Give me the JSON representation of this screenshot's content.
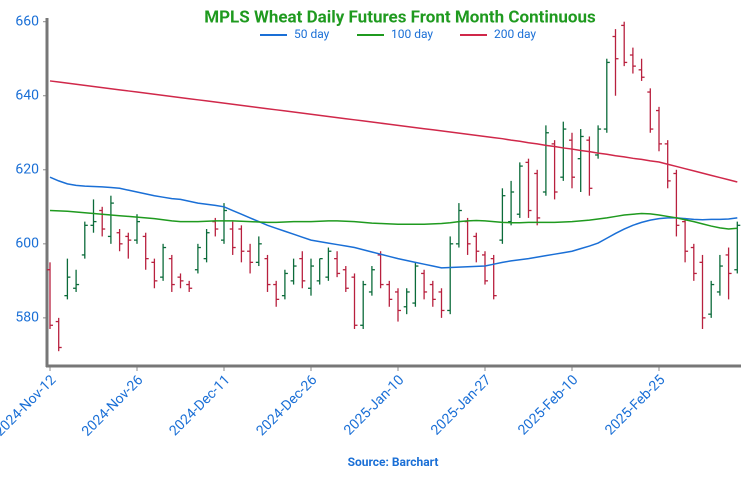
{
  "chart_data": {
    "type": "ohlc",
    "title": "MPLS Wheat Daily Futures Front Month Continuous",
    "source": "Source: Barchart",
    "categories": [
      "2024-Nov-12",
      null,
      null,
      null,
      null,
      null,
      null,
      null,
      null,
      null,
      "2024-Nov-26",
      null,
      null,
      null,
      null,
      null,
      null,
      null,
      null,
      null,
      "2024-Dec-11",
      null,
      null,
      null,
      null,
      null,
      null,
      null,
      null,
      null,
      "2024-Dec-26",
      null,
      null,
      null,
      null,
      null,
      null,
      null,
      null,
      null,
      "2025-Jan-10",
      null,
      null,
      null,
      null,
      null,
      null,
      null,
      null,
      null,
      "2025-Jan-27",
      null,
      null,
      null,
      null,
      null,
      null,
      null,
      null,
      null,
      "2025-Feb-10",
      null,
      null,
      null,
      null,
      null,
      null,
      null,
      null,
      null,
      "2025-Feb-25",
      null,
      null,
      null,
      null,
      null,
      null,
      null,
      null,
      null
    ],
    "ohlc": {
      "up_color": "#0b6b3a",
      "down_color": "#b8203e",
      "open": [
        593,
        579,
        586,
        588,
        597,
        605,
        609,
        602,
        603,
        602,
        601,
        602,
        595,
        591,
        596,
        591,
        589,
        593,
        596,
        606,
        601,
        604,
        604,
        598,
        595,
        596,
        589,
        586,
        590,
        596,
        588,
        590,
        591,
        596,
        593,
        591,
        578,
        587,
        597,
        589,
        587,
        583,
        584,
        592,
        589,
        587,
        582,
        600,
        606,
        602,
        597,
        596,
        601,
        606,
        608,
        622,
        619,
        614,
        627,
        618,
        628,
        623,
        628,
        624,
        631,
        656,
        659,
        651,
        647,
        641,
        636,
        627,
        619,
        606,
        599,
        595,
        581,
        587,
        597,
        593
      ],
      "high": [
        595,
        580,
        596,
        593,
        606,
        612,
        610,
        613,
        604,
        603,
        608,
        603,
        596,
        600,
        597,
        592,
        590,
        600,
        604,
        607,
        611,
        606,
        605,
        600,
        602,
        597,
        590,
        593,
        596,
        598,
        596,
        596,
        599,
        598,
        594,
        592,
        590,
        594,
        598,
        590,
        588,
        588,
        595,
        593,
        590,
        588,
        602,
        611,
        607,
        603,
        598,
        597,
        615,
        617,
        622,
        623,
        620,
        632,
        628,
        633,
        630,
        631,
        629,
        632,
        650,
        658,
        660,
        653,
        650,
        642,
        637,
        628,
        620,
        607,
        600,
        597,
        590,
        597,
        599,
        606
      ],
      "low": [
        577,
        571,
        585,
        587,
        596,
        603,
        602,
        600,
        598,
        596,
        600,
        593,
        588,
        590,
        587,
        588,
        587,
        592,
        595,
        602,
        600,
        597,
        595,
        592,
        594,
        587,
        583,
        585,
        589,
        588,
        586,
        589,
        590,
        591,
        587,
        577,
        577,
        586,
        588,
        583,
        579,
        581,
        583,
        585,
        583,
        580,
        581,
        599,
        597,
        595,
        589,
        585,
        600,
        605,
        607,
        607,
        605,
        613,
        612,
        617,
        615,
        614,
        613,
        623,
        630,
        640,
        648,
        646,
        644,
        630,
        625,
        615,
        602,
        595,
        590,
        577,
        580,
        586,
        585,
        592
      ],
      "close": [
        578,
        572,
        591,
        589,
        605,
        606,
        604,
        611,
        600,
        601,
        606,
        596,
        590,
        599,
        589,
        590,
        588,
        599,
        603,
        604,
        609,
        599,
        598,
        595,
        600,
        589,
        585,
        592,
        594,
        590,
        594,
        596,
        598,
        592,
        588,
        578,
        589,
        593,
        589,
        585,
        582,
        587,
        594,
        587,
        585,
        582,
        600,
        609,
        600,
        598,
        590,
        586,
        613,
        614,
        621,
        609,
        607,
        630,
        614,
        631,
        618,
        629,
        615,
        631,
        649,
        650,
        649,
        648,
        645,
        631,
        627,
        617,
        605,
        598,
        592,
        580,
        589,
        594,
        592,
        605
      ]
    },
    "series": [
      {
        "name": "50 day",
        "color": "#1a6fd6",
        "values": [
          618.0,
          617.0,
          616.2,
          615.8,
          615.6,
          615.5,
          615.4,
          615.2,
          615.0,
          614.5,
          614.0,
          613.5,
          613.0,
          612.6,
          612.2,
          612.0,
          611.5,
          611.0,
          610.7,
          610.4,
          610.0,
          609.0,
          608.0,
          607.0,
          606.0,
          605.0,
          604.2,
          603.4,
          602.6,
          601.8,
          601.0,
          600.6,
          600.2,
          599.8,
          599.4,
          599.0,
          598.4,
          597.8,
          597.2,
          596.6,
          596.0,
          595.5,
          595.0,
          594.5,
          594.0,
          593.5,
          593.6,
          593.7,
          593.8,
          593.9,
          594.0,
          594.5,
          595.0,
          595.4,
          595.7,
          596.0,
          596.4,
          596.8,
          597.2,
          597.6,
          598.0,
          598.7,
          599.4,
          600.2,
          601.5,
          602.8,
          604.0,
          605.0,
          605.8,
          606.4,
          606.8,
          607.0,
          607.0,
          606.8,
          606.6,
          606.5,
          606.6,
          606.6,
          606.7,
          607.0
        ]
      },
      {
        "name": "100 day",
        "color": "#1f9a1f",
        "values": [
          609.0,
          608.9,
          608.8,
          608.6,
          608.4,
          608.2,
          608.0,
          607.8,
          607.6,
          607.4,
          607.2,
          607.0,
          606.8,
          606.5,
          606.2,
          606.0,
          606.0,
          606.0,
          606.1,
          606.2,
          606.2,
          606.2,
          606.1,
          606.0,
          605.9,
          605.8,
          605.8,
          605.9,
          606.0,
          606.0,
          606.0,
          606.1,
          606.2,
          606.2,
          606.1,
          606.0,
          605.8,
          605.6,
          605.5,
          605.4,
          605.3,
          605.3,
          605.3,
          605.3,
          605.4,
          605.5,
          605.7,
          606.0,
          606.2,
          606.3,
          606.2,
          606.0,
          605.8,
          605.7,
          605.7,
          605.8,
          605.8,
          605.8,
          605.8,
          605.9,
          606.0,
          606.2,
          606.4,
          606.7,
          607.0,
          607.4,
          607.8,
          608.0,
          608.2,
          608.1,
          607.8,
          607.4,
          607.0,
          606.5,
          606.0,
          605.4,
          604.8,
          604.3,
          604.0,
          604.2
        ]
      },
      {
        "name": "200 day",
        "color": "#d0284a",
        "values": [
          644.0,
          643.7,
          643.4,
          643.1,
          642.8,
          642.5,
          642.2,
          641.9,
          641.6,
          641.3,
          641.0,
          640.7,
          640.4,
          640.1,
          639.8,
          639.5,
          639.2,
          638.9,
          638.6,
          638.3,
          638.0,
          637.7,
          637.4,
          637.1,
          636.8,
          636.5,
          636.2,
          635.9,
          635.6,
          635.3,
          635.0,
          634.7,
          634.4,
          634.1,
          633.8,
          633.5,
          633.2,
          632.9,
          632.6,
          632.3,
          632.0,
          631.7,
          631.4,
          631.1,
          630.8,
          630.5,
          630.2,
          629.9,
          629.6,
          629.3,
          629.0,
          628.7,
          628.4,
          628.0,
          627.7,
          627.3,
          627.0,
          626.6,
          626.3,
          625.9,
          625.6,
          625.2,
          624.9,
          624.5,
          624.2,
          623.8,
          623.5,
          623.1,
          622.8,
          622.4,
          622.1,
          621.5,
          620.9,
          620.3,
          619.7,
          619.1,
          618.5,
          617.9,
          617.3,
          616.7
        ]
      }
    ],
    "ylim": [
      567,
      661
    ],
    "yticks": [
      580,
      600,
      620,
      640,
      660
    ],
    "grid": false,
    "legend": "top"
  }
}
